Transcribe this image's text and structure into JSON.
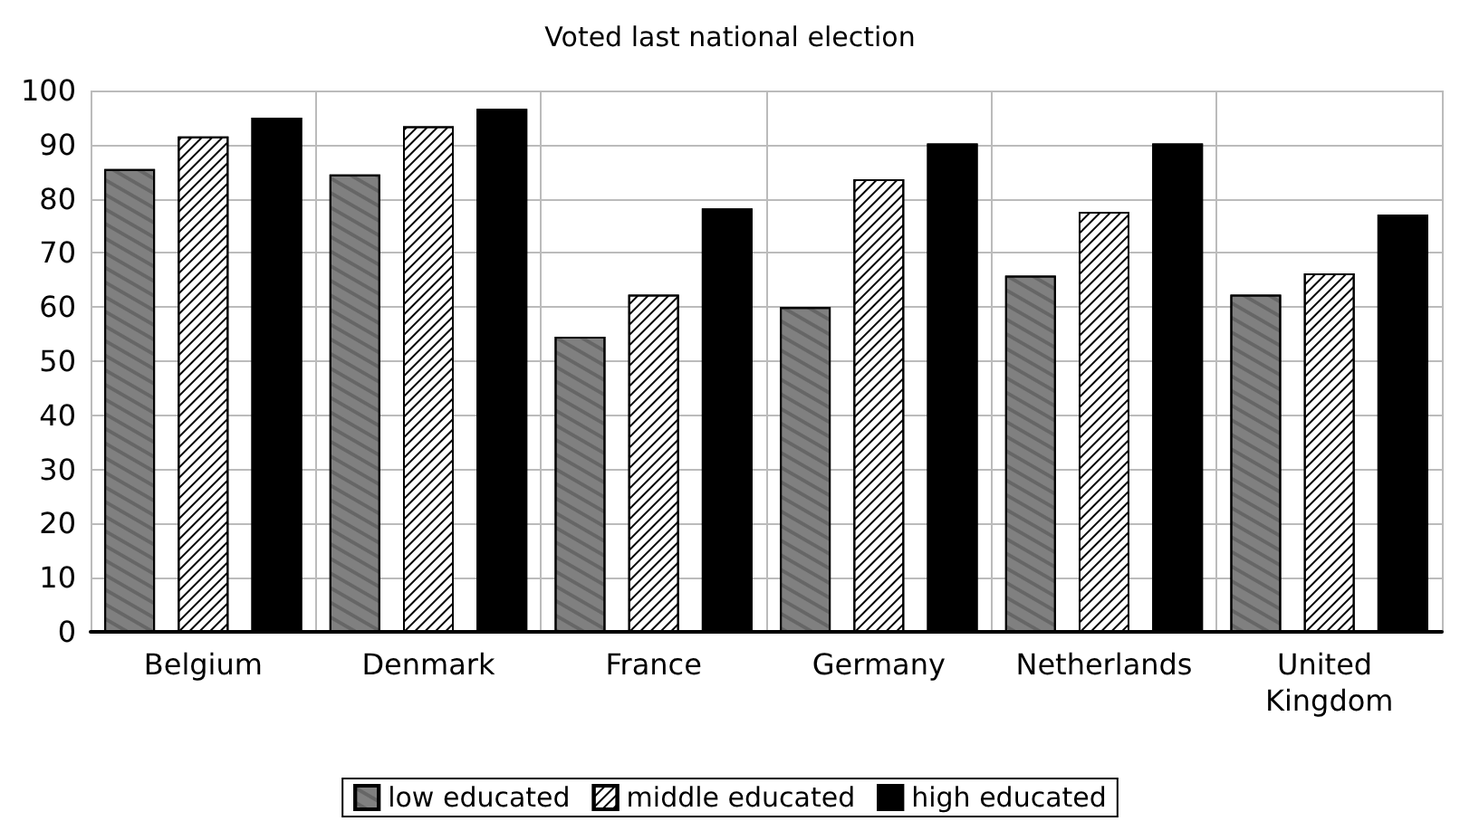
{
  "chart_data": {
    "type": "bar",
    "title": "Voted last national election",
    "categories": [
      "Belgium",
      "Denmark",
      "France",
      "Germany",
      "Netherlands",
      "United Kingdom"
    ],
    "series": [
      {
        "name": "low educated",
        "color": "#808080",
        "values": [
          85.5,
          84.5,
          54.5,
          60,
          65.8,
          62.3
        ]
      },
      {
        "name": "middle educated",
        "color": "#ffffff",
        "values": [
          91.5,
          93.4,
          62.3,
          83.6,
          77.6,
          66.2
        ]
      },
      {
        "name": "high educated",
        "color": "#000000",
        "values": [
          95,
          96.6,
          78.2,
          90.2,
          90.2,
          77.1
        ]
      }
    ],
    "ylim": [
      0,
      100
    ],
    "yticks": [
      0,
      10,
      20,
      30,
      40,
      50,
      60,
      70,
      80,
      90,
      100
    ],
    "grid": true,
    "legend": "bottom"
  }
}
